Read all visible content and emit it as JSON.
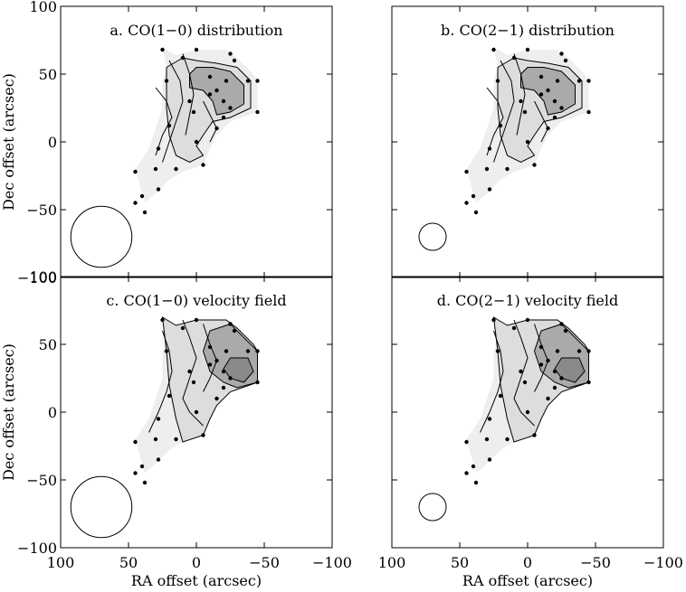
{
  "chart_data": {
    "type": "contour",
    "x_axis": {
      "label": "RA offset (arcsec)",
      "range": [
        100,
        -100
      ],
      "reversed": true,
      "ticks": [
        "100",
        "50",
        "0",
        "−50",
        "−100"
      ],
      "tick_values": [
        100,
        50,
        0,
        -50,
        -100
      ]
    },
    "y_axis": {
      "label": "Dec offset (arcsec)",
      "range": [
        -100,
        100
      ],
      "ticks": [
        "−100",
        "−50",
        "0",
        "50",
        "100"
      ],
      "tick_values": [
        -100,
        -50,
        0,
        50,
        100
      ]
    },
    "grid": false,
    "pointings": [
      [
        25,
        68
      ],
      [
        10,
        62
      ],
      [
        0,
        68
      ],
      [
        -25,
        65
      ],
      [
        -28,
        60
      ],
      [
        -22,
        45
      ],
      [
        -38,
        45
      ],
      [
        -45,
        45
      ],
      [
        22,
        45
      ],
      [
        -10,
        48
      ],
      [
        -15,
        38
      ],
      [
        5,
        30
      ],
      [
        -20,
        30
      ],
      [
        -10,
        35
      ],
      [
        -25,
        25
      ],
      [
        -45,
        22
      ],
      [
        2,
        22
      ],
      [
        -20,
        18
      ],
      [
        20,
        12
      ],
      [
        0,
        0
      ],
      [
        28,
        -5
      ],
      [
        30,
        -20
      ],
      [
        15,
        -20
      ],
      [
        -5,
        -17
      ],
      [
        45,
        -22
      ],
      [
        28,
        -35
      ],
      [
        40,
        -40
      ],
      [
        45,
        -45
      ],
      [
        38,
        -52
      ],
      [
        -15,
        10
      ]
    ],
    "panels": [
      {
        "id": "a",
        "title": "a. CO(1−0) distribution",
        "kind": "distribution",
        "beam_diameter_arcsec": 45
      },
      {
        "id": "b",
        "title": "b. CO(2−1) distribution",
        "kind": "distribution",
        "beam_diameter_arcsec": 20
      },
      {
        "id": "c",
        "title": "c. CO(1−0) velocity field",
        "kind": "velocity",
        "beam_diameter_arcsec": 45
      },
      {
        "id": "d",
        "title": "d. CO(2−1) velocity field",
        "kind": "velocity",
        "beam_diameter_arcsec": 20
      }
    ],
    "colors": {
      "low_fill": "#eeeeee",
      "mid_fill": "#dddddd",
      "high_fill": "#aaaaaa",
      "peak_fill": "#8a8a8a",
      "ink": "#000000"
    }
  }
}
